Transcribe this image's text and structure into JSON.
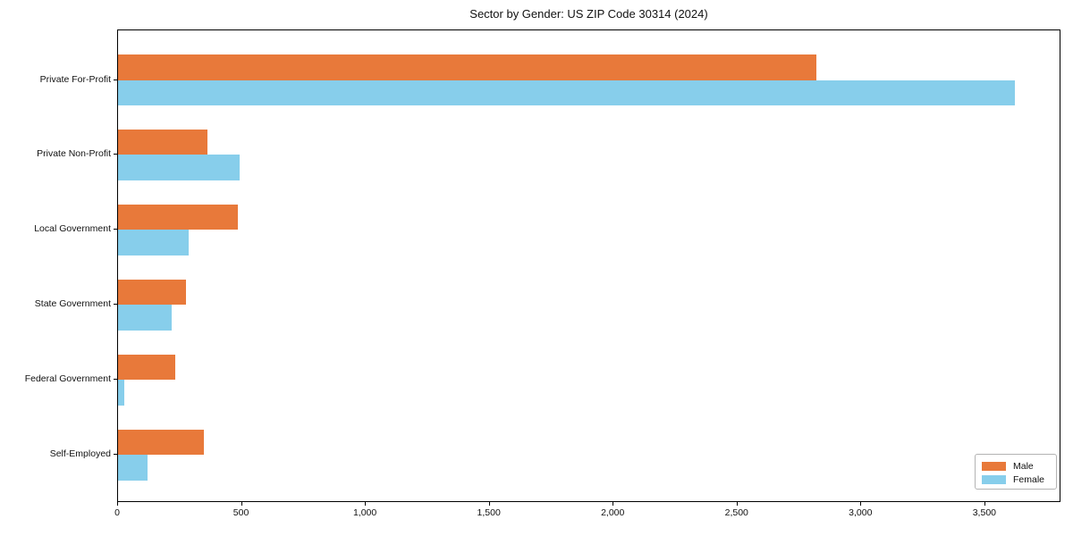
{
  "chart_data": {
    "type": "bar",
    "orientation": "horizontal",
    "title": "Sector by Gender: US ZIP Code 30314 (2024)",
    "categories": [
      "Private For-Profit",
      "Private Non-Profit",
      "Local Government",
      "State Government",
      "Federal Government",
      "Self-Employed"
    ],
    "series": [
      {
        "name": "Male",
        "color": "#E8793A",
        "values": [
          2820,
          360,
          485,
          275,
          230,
          345
        ]
      },
      {
        "name": "Female",
        "color": "#87CEEB",
        "values": [
          3620,
          490,
          285,
          215,
          25,
          120
        ]
      }
    ],
    "xlim": [
      0,
      3800
    ],
    "x_ticks": [
      0,
      500,
      1000,
      1500,
      2000,
      2500,
      3000,
      3500
    ],
    "x_tick_labels": [
      "0",
      "500",
      "1,000",
      "1,500",
      "2,000",
      "2,500",
      "3,000",
      "3,500"
    ],
    "xlabel": "",
    "ylabel": "",
    "grid": false,
    "legend_position": "lower right",
    "axis_color": "#000000",
    "background_color": "#ffffff"
  }
}
